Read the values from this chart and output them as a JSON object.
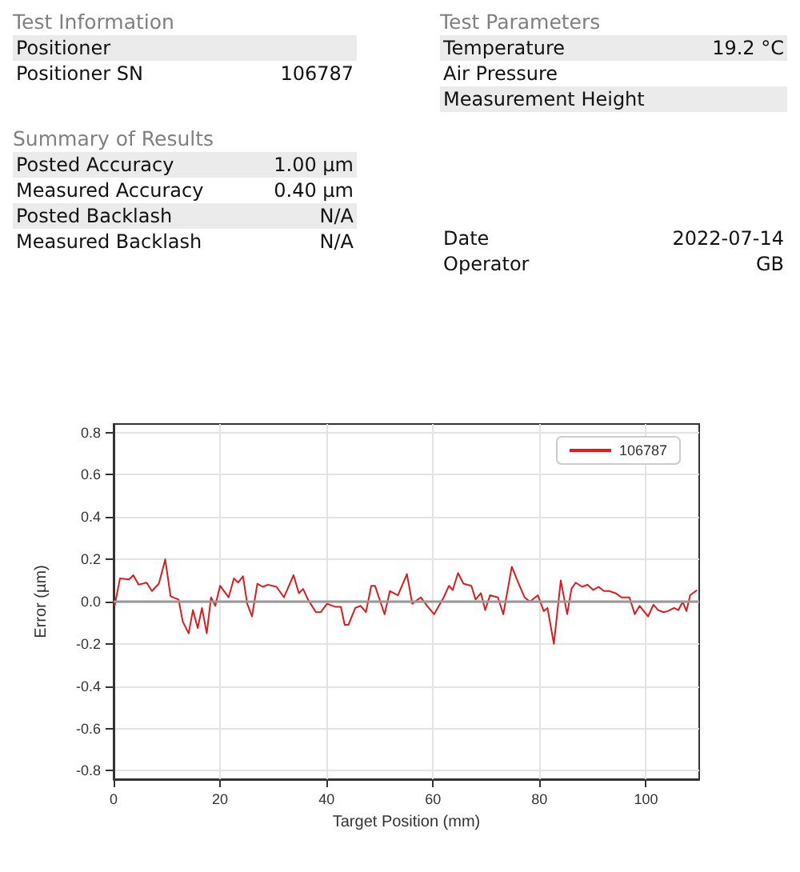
{
  "chart_data": [
    {
      "type": "other",
      "title": "Test Information",
      "categories": [
        "Positioner",
        "Positioner SN"
      ],
      "value_labels": [
        null,
        "106787"
      ]
    },
    {
      "type": "other",
      "title": "Test Parameters",
      "categories": [
        "Temperature",
        "Air Pressure",
        "Measurement Height"
      ],
      "value_labels": [
        "19.2 °C",
        null,
        null
      ]
    },
    {
      "type": "other",
      "title": "Summary of Results",
      "categories": [
        "Posted Accuracy",
        "Measured Accuracy",
        "Posted Backlash",
        "Measured Backlash"
      ],
      "value_labels": [
        "1.00 µm",
        "0.40 µm",
        "N/A",
        "N/A"
      ]
    },
    {
      "type": "other",
      "categories": [
        "Date",
        "Operator"
      ],
      "value_labels": [
        "2022-07-14",
        "GB"
      ]
    },
    {
      "type": "line",
      "xlabel": "Target Position (mm)",
      "ylabel": "Error (µm)",
      "xlim": [
        0,
        110
      ],
      "xticks": [
        0,
        20,
        40,
        60,
        80,
        100
      ],
      "ylim": [
        -0.84,
        0.84
      ],
      "yticks": [
        -0.8,
        -0.6,
        -0.4,
        -0.2,
        {
          "value": 0,
          "label": "0.0"
        },
        0.2,
        0.4,
        0.6,
        0.8
      ],
      "grid": true,
      "legend": "top right",
      "marker": "none",
      "line_style": "solid",
      "ref_lines": [
        {
          "axis": "y",
          "value": 0,
          "color": "#999999"
        }
      ],
      "series": [
        {
          "name": "106787",
          "color": "#e31a1c",
          "x": [
            0.2,
            1.2,
            2.9,
            3.7,
            4.7,
            6.2,
            7.2,
            8.5,
            9.7,
            10.7,
            12.2,
            13.0,
            14.1,
            14.9,
            15.8,
            16.6,
            17.5,
            18.3,
            19.1,
            20.0,
            21.6,
            22.6,
            23.4,
            24.3,
            25.1,
            26.0,
            27.0,
            28.0,
            29.0,
            30.6,
            32.0,
            33.8,
            34.8,
            35.6,
            36.5,
            38.0,
            38.9,
            40.1,
            41.7,
            42.7,
            43.4,
            44.1,
            45.4,
            46.4,
            47.4,
            48.4,
            49.1,
            50.9,
            51.9,
            53.4,
            55.1,
            56.1,
            57.7,
            58.9,
            60.2,
            62.0,
            63.0,
            63.7,
            64.7,
            65.7,
            67.2,
            68.0,
            69.0,
            69.8,
            70.7,
            72.2,
            73.2,
            74.8,
            76.0,
            77.2,
            78.2,
            79.7,
            80.8,
            81.5,
            82.7,
            84.0,
            85.2,
            86.0,
            86.8,
            88.0,
            89.0,
            90.1,
            91.1,
            92.1,
            93.1,
            94.3,
            95.4,
            96.9,
            97.9,
            98.8,
            100.4,
            101.4,
            102.3,
            103.3,
            104.1,
            105.3,
            106.1,
            106.9,
            107.6,
            108.3,
            109.6
          ],
          "values": [
            -0.02,
            0.11,
            0.105,
            0.125,
            0.08,
            0.09,
            0.05,
            0.085,
            0.2,
            0.025,
            0.01,
            -0.095,
            -0.15,
            -0.04,
            -0.125,
            -0.03,
            -0.15,
            0.02,
            -0.02,
            0.075,
            0.02,
            0.11,
            0.09,
            0.12,
            -0.01,
            -0.07,
            0.085,
            0.07,
            0.08,
            0.07,
            0.02,
            0.125,
            0.04,
            0.06,
            0.01,
            -0.05,
            -0.05,
            -0.01,
            -0.025,
            -0.025,
            -0.11,
            -0.11,
            -0.03,
            -0.02,
            -0.05,
            0.075,
            0.075,
            -0.06,
            0.05,
            0.03,
            0.13,
            -0.01,
            0.02,
            -0.02,
            -0.06,
            0.02,
            0.075,
            0.055,
            0.135,
            0.085,
            0.075,
            0.01,
            0.04,
            -0.04,
            0.03,
            0.02,
            -0.06,
            0.165,
            0.09,
            0.02,
            0,
            0.03,
            -0.045,
            -0.03,
            -0.2,
            0.1,
            -0.06,
            0.06,
            0.09,
            0.07,
            0.08,
            0.055,
            0.07,
            0.05,
            0.05,
            0.04,
            0.02,
            0.02,
            -0.06,
            -0.02,
            -0.07,
            -0.015,
            -0.04,
            -0.05,
            -0.045,
            -0.03,
            -0.04,
            0,
            -0.045,
            0.03,
            0.055
          ]
        }
      ]
    }
  ]
}
